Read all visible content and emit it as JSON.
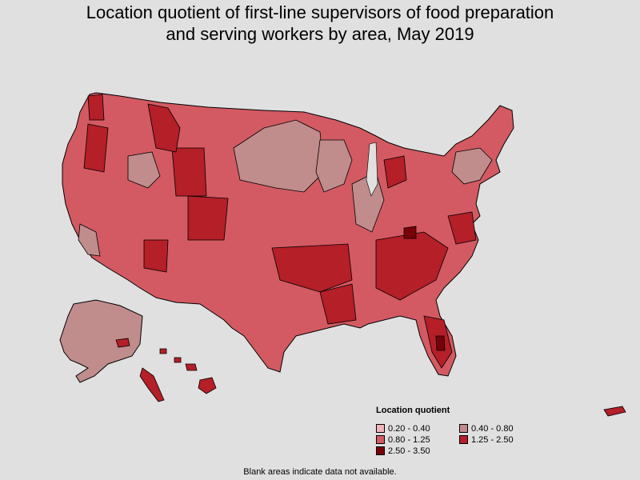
{
  "title": {
    "line1": "Location quotient of first-line supervisors of food preparation",
    "line2": "and serving workers by area, May 2019"
  },
  "legend": {
    "title": "Location quotient",
    "items": [
      {
        "label": "0.20 - 0.40",
        "color": "#f4b3b8"
      },
      {
        "label": "0.40 - 0.80",
        "color": "#c08c8c"
      },
      {
        "label": "0.80 - 1.25",
        "color": "#d35a62"
      },
      {
        "label": "1.25 - 2.50",
        "color": "#b41f28"
      },
      {
        "label": "2.50 - 3.50",
        "color": "#780008"
      }
    ]
  },
  "footnote": "Blank areas indicate data not available.",
  "colors": {
    "background": "#e0e0e0",
    "border": "#000000"
  }
}
